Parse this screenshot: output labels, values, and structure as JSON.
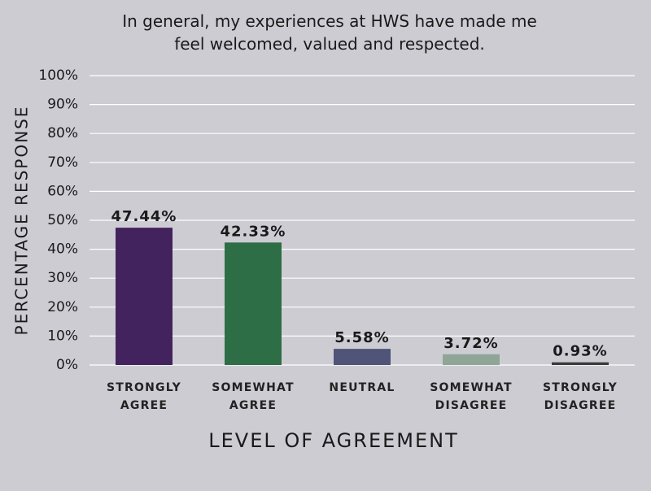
{
  "chart_data": {
    "type": "bar",
    "title": "In general, my experiences at HWS have made me feel welcomed, valued and respected.",
    "x_label": "LEVEL OF AGREEMENT",
    "y_label": "PERCENTAGE RESPONSE",
    "categories": [
      "STRONGLY AGREE",
      "SOMEWHAT AGREE",
      "NEUTRAL",
      "SOMEWHAT DISAGREE",
      "STRONGLY DISAGREE"
    ],
    "values": [
      47.44,
      42.33,
      5.58,
      3.72,
      0.93
    ],
    "value_labels": [
      "47.44%",
      "42.33%",
      "5.58%",
      "3.72%",
      "0.93%"
    ],
    "colors": [
      "#43235e",
      "#2e6e47",
      "#4f5478",
      "#8fa696",
      "#3a3a3a"
    ],
    "ylim": [
      0,
      100
    ],
    "yticks": [
      {
        "value": 0,
        "label": "0%"
      },
      {
        "value": 10,
        "label": "10%"
      },
      {
        "value": 20,
        "label": "20%"
      },
      {
        "value": 30,
        "label": "30%"
      },
      {
        "value": 40,
        "label": "40%"
      },
      {
        "value": 50,
        "label": "50%"
      },
      {
        "value": 60,
        "label": "60%"
      },
      {
        "value": 70,
        "label": "70%"
      },
      {
        "value": 80,
        "label": "80%"
      },
      {
        "value": 90,
        "label": "90%"
      },
      {
        "value": 100,
        "label": "100%"
      }
    ],
    "grid": true
  }
}
